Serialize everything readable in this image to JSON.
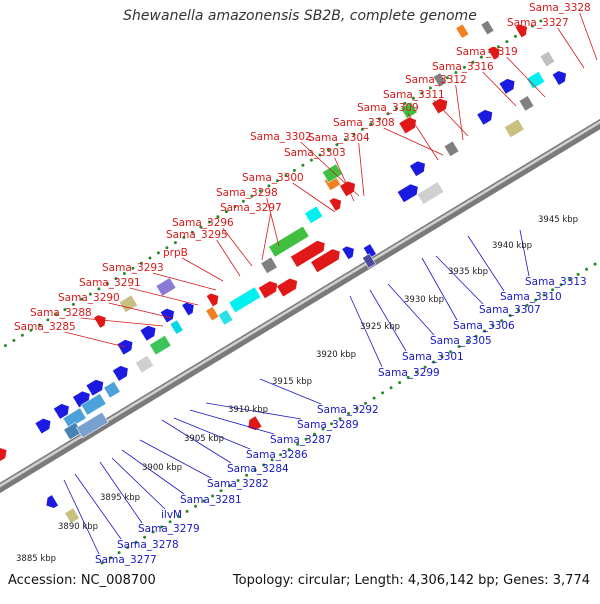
{
  "title": "Shewanella amazonensis SB2B, complete genome",
  "footer": {
    "accession": "Accession: NC_008700",
    "summary": "Topology: circular; Length: 4,306,142 bp; Genes: 3,774"
  },
  "colors": {
    "forward_label": "#d51919",
    "reverse_label": "#1818c4",
    "backbone": "#9a9a9a",
    "dots": "#2a8a2a"
  },
  "forward_labels": [
    "Sama_3285",
    "Sama_3288",
    "Sama_3290",
    "Sama_3291",
    "Sama_3293",
    "prpB",
    "Sama_3295",
    "Sama_3296",
    "Sama_3297",
    "Sama_3298",
    "Sama_3300",
    "Sama_3302",
    "Sama_3303",
    "Sama_3304",
    "Sama_3308",
    "Sama_3309",
    "Sama_3311",
    "Sama_3312",
    "Sama_3316",
    "Sama_3319",
    "Sama_3327",
    "Sama_3328"
  ],
  "reverse_labels": [
    "Sama_3277",
    "Sama_3278",
    "Sama_3279",
    "ilvM",
    "Sama_3281",
    "Sama_3282",
    "Sama_3284",
    "Sama_3286",
    "Sama_3287",
    "Sama_3289",
    "Sama_3292",
    "Sama_3299",
    "Sama_3301",
    "Sama_3305",
    "Sama_3306",
    "Sama_3307",
    "Sama_3310",
    "Sama_3313"
  ],
  "ticks": [
    "3885 kbp",
    "3890 kbp",
    "3895 kbp",
    "3900 kbp",
    "3905 kbp",
    "3910 kbp",
    "3915 kbp",
    "3920 kbp",
    "3925 kbp",
    "3930 kbp",
    "3935 kbp",
    "3940 kbp",
    "3945 kbp"
  ]
}
